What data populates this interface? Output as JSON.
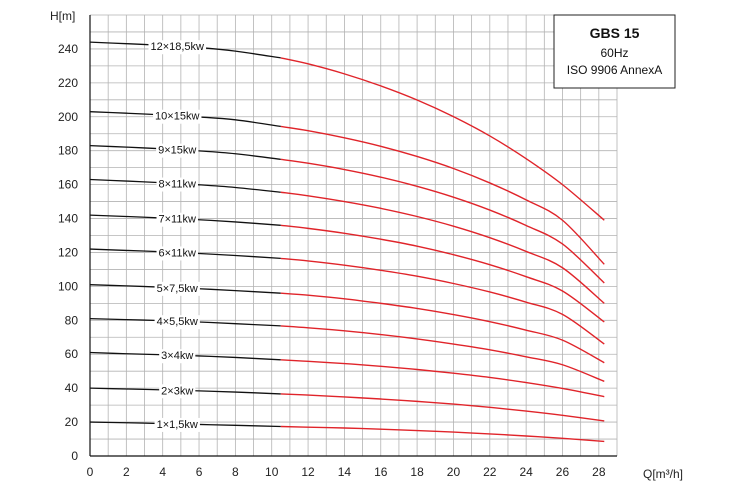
{
  "chart_data": {
    "type": "line",
    "title": "GBS 15",
    "subtitle": [
      "60Hz",
      "ISO 9906 AnnexA"
    ],
    "xlabel": "Q[m³/h]",
    "ylabel": "H[m]",
    "xlim": [
      0,
      29
    ],
    "ylim": [
      0,
      260
    ],
    "x_ticks": [
      0,
      2,
      4,
      6,
      8,
      10,
      12,
      14,
      16,
      18,
      20,
      22,
      24,
      26,
      28
    ],
    "y_ticks": [
      0,
      20,
      40,
      60,
      80,
      100,
      120,
      140,
      160,
      180,
      200,
      220,
      240
    ],
    "grid": true,
    "x": [
      0,
      2,
      4,
      6,
      8,
      10.5,
      12,
      14,
      16,
      18,
      20,
      22,
      24,
      26,
      28.3
    ],
    "threshold_x": 10.5,
    "colors": {
      "low_range": "#111111",
      "operating_range": "#e0242a",
      "grid": "#b3b3b3"
    },
    "series": [
      {
        "name": "1×1,5kw",
        "values": [
          20,
          19.6,
          19.1,
          18.6,
          18.1,
          17.4,
          17.0,
          16.5,
          15.8,
          15.0,
          14.1,
          13.0,
          11.8,
          10.4,
          8.6
        ]
      },
      {
        "name": "2×3kw",
        "values": [
          40,
          39.5,
          39.0,
          38.4,
          37.7,
          36.6,
          35.9,
          34.8,
          33.6,
          32.2,
          30.6,
          28.7,
          26.5,
          24.0,
          20.7
        ]
      },
      {
        "name": "3×4kw",
        "values": [
          61,
          60.3,
          59.7,
          59.0,
          58.1,
          56.7,
          55.8,
          54.5,
          52.9,
          51.0,
          48.8,
          46.3,
          43.3,
          39.8,
          35.0
        ]
      },
      {
        "name": "4×5,5kw",
        "values": [
          81,
          80.4,
          79.8,
          79.0,
          78.0,
          76.7,
          75.6,
          73.8,
          71.6,
          69.0,
          66.0,
          62.6,
          58.5,
          53.8,
          44.0
        ]
      },
      {
        "name": "5×7,5kw",
        "values": [
          101,
          100.3,
          99.5,
          98.6,
          97.5,
          96.0,
          94.8,
          92.7,
          90.0,
          87.0,
          83.4,
          79.2,
          74.2,
          68.3,
          55.0
        ]
      },
      {
        "name": "6×11kw",
        "values": [
          122,
          121.2,
          120.4,
          119.4,
          118.2,
          116.5,
          115.0,
          112.5,
          109.5,
          106.0,
          101.7,
          96.7,
          90.7,
          83.5,
          66.0
        ]
      },
      {
        "name": "7×11kw",
        "values": [
          142,
          141.2,
          140.3,
          139.3,
          138.0,
          136.0,
          134.2,
          131.3,
          127.8,
          123.7,
          118.7,
          112.8,
          105.7,
          97.3,
          79.0
        ]
      },
      {
        "name": "8×11kw",
        "values": [
          163,
          162.1,
          161.1,
          159.9,
          158.3,
          155.5,
          153.4,
          150.0,
          146.0,
          141.2,
          135.5,
          128.7,
          120.6,
          111.0,
          90.0
        ]
      },
      {
        "name": "9×15kw",
        "values": [
          183,
          182.1,
          181.1,
          179.9,
          178.2,
          174.9,
          172.6,
          168.9,
          164.4,
          159.0,
          152.6,
          145.0,
          135.9,
          125.0,
          102.0
        ]
      },
      {
        "name": "10×15kw",
        "values": [
          203,
          202.1,
          201.1,
          199.9,
          198.2,
          194.3,
          191.8,
          187.6,
          182.6,
          176.6,
          169.5,
          161.0,
          151.0,
          139.0,
          113.0
        ]
      },
      {
        "name": "12×18,5kw",
        "values": [
          244,
          243.1,
          242.1,
          240.8,
          238.7,
          234.7,
          231.2,
          225.3,
          218.2,
          209.9,
          200.1,
          188.7,
          175.3,
          160.0,
          139.0
        ]
      }
    ]
  }
}
